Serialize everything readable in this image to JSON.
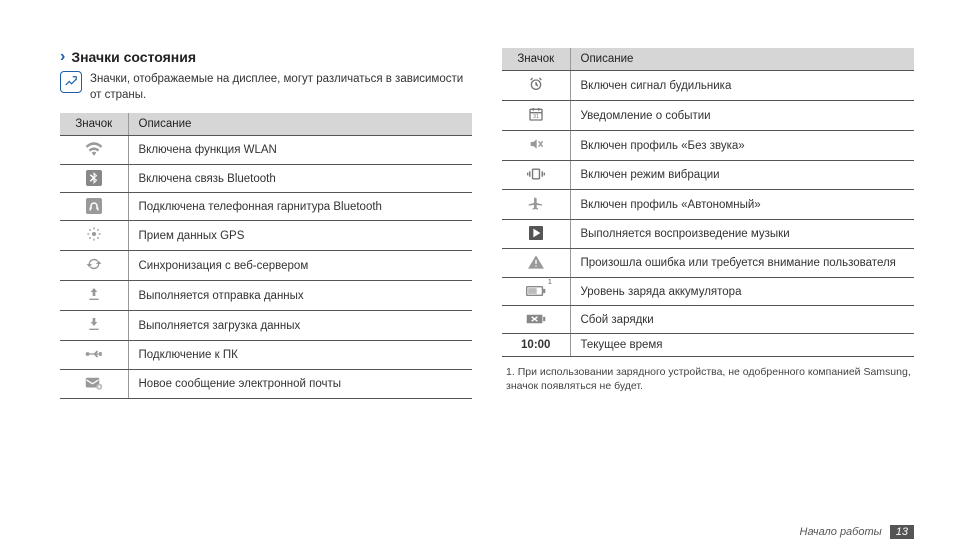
{
  "heading": "Значки состояния",
  "note": "Значки, отображаемые на дисплее, могут различаться в зависимости от страны.",
  "table_headers": {
    "icon": "Значок",
    "desc": "Описание"
  },
  "left_rows": [
    {
      "icon": "wifi",
      "desc": "Включена функция WLAN"
    },
    {
      "icon": "bluetooth",
      "desc": "Включена связь Bluetooth"
    },
    {
      "icon": "bt-headset",
      "desc": "Подключена телефонная гарнитура Bluetooth"
    },
    {
      "icon": "gps",
      "desc": "Прием данных GPS"
    },
    {
      "icon": "sync",
      "desc": "Синхронизация с веб-сервером"
    },
    {
      "icon": "upload",
      "desc": "Выполняется отправка данных"
    },
    {
      "icon": "download",
      "desc": "Выполняется загрузка данных"
    },
    {
      "icon": "usb",
      "desc": "Подключение к ПК"
    },
    {
      "icon": "email",
      "desc": "Новое сообщение электронной почты"
    }
  ],
  "right_rows": [
    {
      "icon": "alarm",
      "desc": "Включен сигнал будильника"
    },
    {
      "icon": "calendar",
      "desc": "Уведомление о событии"
    },
    {
      "icon": "mute",
      "desc": "Включен профиль «Без звука»"
    },
    {
      "icon": "vibrate",
      "desc": "Включен режим вибрации"
    },
    {
      "icon": "airplane",
      "desc": "Включен профиль «Автономный»"
    },
    {
      "icon": "play",
      "desc": "Выполняется воспроизведение музыки"
    },
    {
      "icon": "warning",
      "desc": "Произошла ошибка или требуется внимание пользователя"
    },
    {
      "icon": "battery",
      "sup": "1",
      "desc": "Уровень заряда аккумулятора"
    },
    {
      "icon": "battery-err",
      "desc": "Сбой зарядки"
    },
    {
      "icon": "time",
      "text": "10:00",
      "bold": true,
      "desc": "Текущее время"
    }
  ],
  "footnote_marker": "1.",
  "footnote": "При использовании зарядного устройства, не одобренного компанией Samsung, значок появляться не будет.",
  "footer_label": "Начало работы",
  "page_number": "13",
  "colors": {
    "accent": "#1e5fa8",
    "header_bg": "#d6d6d6",
    "border": "#555555",
    "icon_gray": "#888888"
  }
}
